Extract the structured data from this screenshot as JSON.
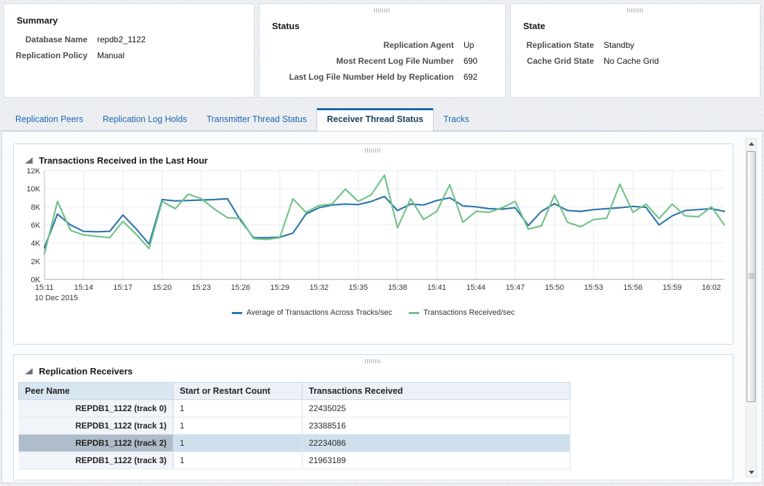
{
  "panels": {
    "summary": {
      "title": "Summary",
      "fields": [
        {
          "label": "Database Name",
          "value": "repdb2_1122"
        },
        {
          "label": "Replication Policy",
          "value": "Manual"
        }
      ]
    },
    "status": {
      "title": "Status",
      "fields": [
        {
          "label": "Replication Agent",
          "value": "Up"
        },
        {
          "label": "Most Recent Log File Number",
          "value": "690"
        },
        {
          "label": "Last Log File Number Held by Replication",
          "value": "692"
        }
      ]
    },
    "state": {
      "title": "State",
      "fields": [
        {
          "label": "Replication State",
          "value": "Standby"
        },
        {
          "label": "Cache Grid State",
          "value": "No Cache Grid"
        }
      ]
    }
  },
  "tabs": [
    {
      "label": "Replication Peers",
      "active": false
    },
    {
      "label": "Replication Log Holds",
      "active": false
    },
    {
      "label": "Transmitter Thread Status",
      "active": false
    },
    {
      "label": "Receiver Thread Status",
      "active": true
    },
    {
      "label": "Tracks",
      "active": false
    }
  ],
  "chart_data": {
    "type": "line",
    "title": "Transactions Received in the Last Hour",
    "x_axis_note": "10 Dec 2015",
    "tick_labels": [
      "15:11",
      "15:14",
      "15:17",
      "15:20",
      "15:23",
      "15:26",
      "15:29",
      "15:32",
      "15:35",
      "15:38",
      "15:41",
      "15:44",
      "15:47",
      "15:50",
      "15:53",
      "15:56",
      "15:59",
      "16:02"
    ],
    "tick_every_points": 3,
    "ylim": [
      0,
      12000
    ],
    "y_tick_step": 2000,
    "y_tick_labels": [
      "0K",
      "2K",
      "4K",
      "6K",
      "8K",
      "10K",
      "12K"
    ],
    "grid": true,
    "legend_position": "bottom-center",
    "series": [
      {
        "name": "Average of Transactions Across Tracks/sec",
        "color": "#2d75ad",
        "values": [
          3500,
          7200,
          6000,
          5300,
          5250,
          5300,
          7100,
          5600,
          3900,
          8800,
          8650,
          8700,
          8750,
          8800,
          8900,
          6500,
          4600,
          4600,
          4650,
          5100,
          7200,
          7900,
          8200,
          8300,
          8250,
          8600,
          9150,
          7600,
          8300,
          8200,
          8700,
          9000,
          8100,
          8000,
          7800,
          7750,
          7900,
          5950,
          7500,
          8350,
          7600,
          7500,
          7700,
          7800,
          7900,
          8050,
          7950,
          6000,
          7000,
          7600,
          7700,
          7800,
          7500
        ]
      },
      {
        "name": "Transactions Received/sec",
        "color": "#6fc287",
        "values": [
          2800,
          8600,
          5400,
          4900,
          4750,
          4600,
          6400,
          5000,
          3400,
          8600,
          7800,
          9400,
          8900,
          7750,
          6800,
          6700,
          4500,
          4400,
          4600,
          8900,
          7400,
          8150,
          8300,
          9950,
          8600,
          9350,
          11500,
          5700,
          8900,
          6600,
          7500,
          10450,
          6300,
          7500,
          7400,
          7900,
          8600,
          5550,
          5900,
          9300,
          6300,
          5800,
          6600,
          6750,
          10500,
          7400,
          8300,
          6700,
          8300,
          7000,
          6900,
          8000,
          6000
        ]
      }
    ]
  },
  "receivers": {
    "title": "Replication Receivers",
    "columns": [
      "Peer Name",
      "Start or Restart Count",
      "Transactions Received"
    ],
    "rows": [
      {
        "peer": "REPDB1_1122 (track 0)",
        "count": "1",
        "transactions": "22435025",
        "selected": false
      },
      {
        "peer": "REPDB1_1122 (track 1)",
        "count": "1",
        "transactions": "23388516",
        "selected": false
      },
      {
        "peer": "REPDB1_1122 (track 2)",
        "count": "1",
        "transactions": "22234086",
        "selected": true
      },
      {
        "peer": "REPDB1_1122 (track 3)",
        "count": "1",
        "transactions": "21963189",
        "selected": false
      }
    ]
  },
  "icons": {
    "drag_handle": "||||||",
    "collapse_triangle": "expanded-section",
    "scroll_up": "up-arrow",
    "scroll_down": "down-arrow"
  }
}
